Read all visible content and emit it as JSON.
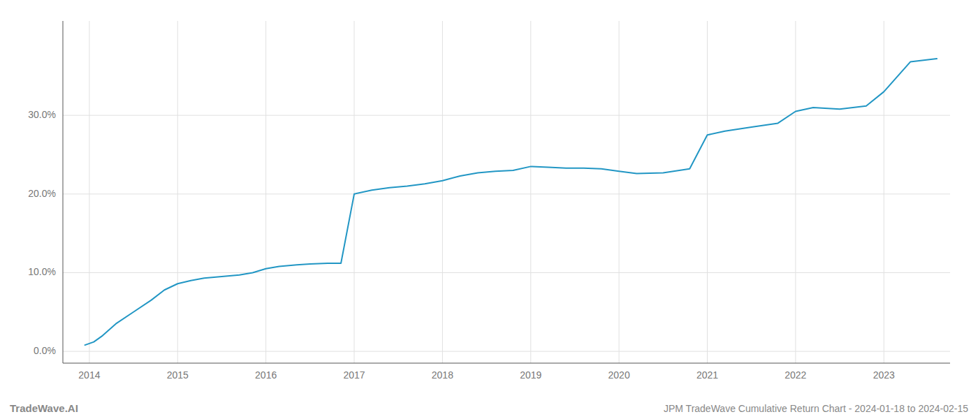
{
  "chart_data": {
    "type": "line",
    "title": "JPM TradeWave Cumulative Return Chart - 2024-01-18 to 2024-02-15",
    "annotations": [
      "TradeWave.AI"
    ],
    "color": "#2196c4",
    "grid": true,
    "x": [
      2013.95,
      2014.05,
      2014.15,
      2014.3,
      2014.5,
      2014.7,
      2014.85,
      2015.0,
      2015.15,
      2015.3,
      2015.5,
      2015.7,
      2015.85,
      2016.0,
      2016.15,
      2016.35,
      2016.5,
      2016.7,
      2016.85,
      2017.0,
      2017.2,
      2017.4,
      2017.6,
      2017.8,
      2018.0,
      2018.2,
      2018.4,
      2018.6,
      2018.8,
      2019.0,
      2019.2,
      2019.4,
      2019.6,
      2019.8,
      2020.0,
      2020.2,
      2020.5,
      2020.8,
      2021.0,
      2021.2,
      2021.5,
      2021.8,
      2022.0,
      2022.2,
      2022.5,
      2022.8,
      2023.0,
      2023.3,
      2023.6
    ],
    "values": [
      0.8,
      1.2,
      2.0,
      3.5,
      5.0,
      6.5,
      7.8,
      8.6,
      9.0,
      9.3,
      9.5,
      9.7,
      10.0,
      10.5,
      10.8,
      11.0,
      11.1,
      11.2,
      11.2,
      20.0,
      20.5,
      20.8,
      21.0,
      21.3,
      21.7,
      22.3,
      22.7,
      22.9,
      23.0,
      23.5,
      23.4,
      23.3,
      23.3,
      23.2,
      22.9,
      22.6,
      22.7,
      23.2,
      27.5,
      28.0,
      28.5,
      29.0,
      30.5,
      31.0,
      30.8,
      31.2,
      33.0,
      36.8,
      37.2
    ],
    "xlim": [
      2013.7,
      2023.75
    ],
    "xticks": [
      2014,
      2015,
      2016,
      2017,
      2018,
      2019,
      2020,
      2021,
      2022,
      2023
    ],
    "ylim": [
      -1.5,
      42
    ],
    "yticks": [
      {
        "value": 0.0,
        "label": "0.0%"
      },
      {
        "value": 10.0,
        "label": "10.0%"
      },
      {
        "value": 20.0,
        "label": "20.0%"
      },
      {
        "value": 30.0,
        "label": "30.0%"
      }
    ]
  }
}
